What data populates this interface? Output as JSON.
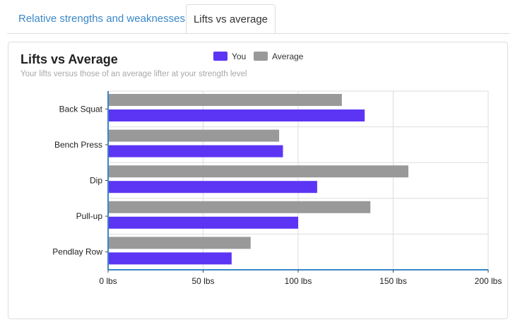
{
  "tabs": [
    {
      "label": "Relative strengths and weaknesses",
      "active": false
    },
    {
      "label": "Lifts vs average",
      "active": true
    }
  ],
  "chart_data": {
    "type": "bar",
    "orientation": "horizontal",
    "title": "Lifts vs Average",
    "subtitle": "Your lifts versus those of an average lifter at your strength level",
    "categories": [
      "Back Squat",
      "Bench Press",
      "Dip",
      "Pull-up",
      "Pendlay Row"
    ],
    "series": [
      {
        "name": "You",
        "color": "#5c35f4",
        "values": [
          135,
          92,
          110,
          100,
          65
        ]
      },
      {
        "name": "Average",
        "color": "#999999",
        "values": [
          123,
          90,
          158,
          138,
          75
        ]
      }
    ],
    "xlim": [
      0,
      200
    ],
    "x_ticks": [
      0,
      50,
      100,
      150,
      200
    ],
    "x_tick_labels": [
      "0 lbs",
      "50 lbs",
      "100 lbs",
      "150 lbs",
      "200 lbs"
    ],
    "grid": true,
    "legend_position": "top-center",
    "axis_color": "#3a87c7",
    "grid_color": "#dddddd"
  }
}
